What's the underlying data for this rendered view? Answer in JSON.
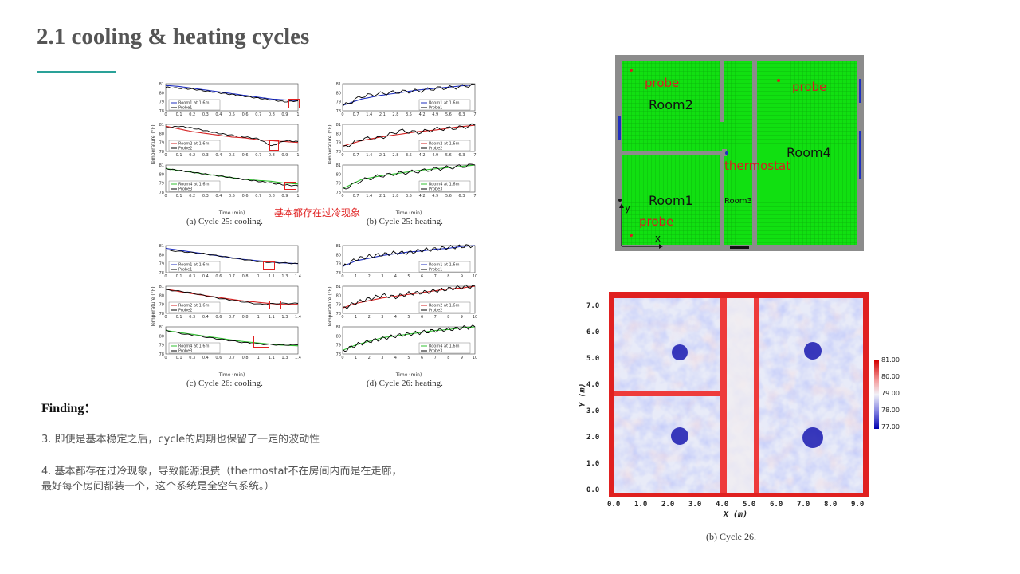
{
  "slide": {
    "title": "2.1 cooling & heating cycles",
    "accent": "#2aa198"
  },
  "charts": {
    "ylabel": "Temperature (°F)",
    "xlabel": "Time (min)",
    "overlay_note": "基本都存在过冷现象",
    "caption_a": "(a) Cycle 25: cooling.",
    "caption_b": "(b) Cycle 25: heating.",
    "caption_c": "(c) Cycle 26: cooling.",
    "caption_d": "(d) Cycle 26: heating."
  },
  "chart_data": [
    {
      "type": "line",
      "title": "",
      "xlabel": "Time (min)",
      "ylabel": "Temperature (°F)",
      "panels": [
        {
          "series": [
            {
              "name": "Room1 at 1.6m",
              "color": "#1f2fbf"
            },
            {
              "name": "Probe1",
              "color": "#000000"
            }
          ],
          "xlim": [
            0,
            1
          ],
          "ylim": [
            78,
            81
          ],
          "x": [
            0,
            0.1,
            0.2,
            0.3,
            0.4,
            0.5,
            0.6,
            0.7,
            0.8,
            0.9,
            1.0
          ],
          "room": [
            80.8,
            80.7,
            80.5,
            80.3,
            80.1,
            79.9,
            79.7,
            79.5,
            79.3,
            79.2,
            79.1
          ],
          "probe": [
            80.6,
            80.5,
            80.4,
            80.2,
            80.0,
            79.8,
            79.6,
            79.4,
            79.2,
            79.0,
            79.1
          ]
        },
        {
          "series": [
            {
              "name": "Room2 at 1.6m",
              "color": "#d42020"
            },
            {
              "name": "Probe2",
              "color": "#000000"
            }
          ],
          "xlim": [
            0,
            1
          ],
          "ylim": [
            78,
            81
          ],
          "x": [
            0,
            0.1,
            0.2,
            0.3,
            0.4,
            0.5,
            0.6,
            0.7,
            0.8,
            0.9,
            1.0
          ],
          "room": [
            80.8,
            80.5,
            80.2,
            80.0,
            79.8,
            79.6,
            79.5,
            79.3,
            79.2,
            79.1,
            79.0
          ],
          "probe": [
            80.6,
            80.8,
            80.6,
            80.3,
            80.0,
            79.8,
            79.6,
            79.4,
            78.6,
            79.2,
            79.1
          ]
        },
        {
          "series": [
            {
              "name": "Room4 at 1.6m",
              "color": "#30c030"
            },
            {
              "name": "Probe3",
              "color": "#000000"
            }
          ],
          "xlim": [
            0,
            1
          ],
          "ylim": [
            78,
            81
          ],
          "x": [
            0,
            0.1,
            0.2,
            0.3,
            0.4,
            0.5,
            0.6,
            0.7,
            0.8,
            0.9,
            1.0
          ],
          "room": [
            80.6,
            80.4,
            80.2,
            80.0,
            79.8,
            79.6,
            79.4,
            79.3,
            79.2,
            79.0,
            78.9
          ],
          "probe": [
            80.6,
            80.4,
            80.2,
            80.0,
            79.8,
            79.6,
            79.4,
            79.2,
            79.0,
            78.8,
            78.7
          ]
        }
      ]
    },
    {
      "type": "line",
      "title": "",
      "xlabel": "Time (min)",
      "ylabel": "Temperature (°F)",
      "panels": [
        {
          "series": [
            {
              "name": "Room1 at 1.6m",
              "color": "#1f2fbf"
            },
            {
              "name": "Probe1",
              "color": "#000000"
            }
          ],
          "xlim": [
            0,
            7
          ],
          "ylim": [
            78,
            81
          ],
          "x": [
            0,
            1,
            2,
            3,
            4,
            5,
            6,
            7
          ],
          "room": [
            78.6,
            79.3,
            79.7,
            80.0,
            80.3,
            80.5,
            80.7,
            80.9
          ],
          "probe": [
            78.5,
            79.6,
            79.9,
            80.1,
            80.2,
            80.5,
            80.6,
            80.9
          ]
        },
        {
          "series": [
            {
              "name": "Room2 at 1.6m",
              "color": "#d42020"
            },
            {
              "name": "Probe2",
              "color": "#000000"
            }
          ],
          "xlim": [
            0,
            7
          ],
          "ylim": [
            78,
            81
          ],
          "x": [
            0,
            1,
            2,
            3,
            4,
            5,
            6,
            7
          ],
          "room": [
            78.6,
            79.2,
            79.6,
            79.9,
            80.2,
            80.4,
            80.7,
            80.9
          ],
          "probe": [
            78.4,
            79.4,
            79.5,
            80.3,
            80.1,
            80.5,
            80.6,
            80.9
          ]
        },
        {
          "series": [
            {
              "name": "Room4 at 1.6m",
              "color": "#30c030"
            },
            {
              "name": "Probe3",
              "color": "#000000"
            }
          ],
          "xlim": [
            0,
            7
          ],
          "ylim": [
            78,
            81
          ],
          "x": [
            0,
            1,
            2,
            3,
            4,
            5,
            6,
            7
          ],
          "room": [
            78.4,
            79.4,
            79.8,
            80.1,
            80.4,
            80.6,
            80.8,
            81.0
          ],
          "probe": [
            78.3,
            79.3,
            79.8,
            80.1,
            80.3,
            80.6,
            80.8,
            81.0
          ]
        }
      ]
    },
    {
      "type": "line",
      "title": "",
      "xlabel": "Time (min)",
      "ylabel": "Temperature (°F)",
      "panels": [
        {
          "series": [
            {
              "name": "Room1 at 1.6m",
              "color": "#1f2fbf"
            },
            {
              "name": "Probe1",
              "color": "#000000"
            }
          ],
          "xlim": [
            0,
            1.4
          ],
          "ylim": [
            78,
            81
          ],
          "x": [
            0,
            0.2,
            0.4,
            0.6,
            0.8,
            1.0,
            1.2,
            1.4
          ],
          "room": [
            80.7,
            80.4,
            80.1,
            79.8,
            79.5,
            79.3,
            79.1,
            79.0
          ],
          "probe": [
            80.5,
            80.3,
            80.1,
            79.8,
            79.5,
            79.2,
            79.1,
            79.0
          ]
        },
        {
          "series": [
            {
              "name": "Room2 at 1.6m",
              "color": "#d42020"
            },
            {
              "name": "Probe2",
              "color": "#000000"
            }
          ],
          "xlim": [
            0,
            1.4
          ],
          "ylim": [
            78,
            81
          ],
          "x": [
            0,
            0.2,
            0.4,
            0.6,
            0.8,
            1.0,
            1.2,
            1.4
          ],
          "room": [
            80.7,
            80.3,
            80.0,
            79.7,
            79.4,
            79.2,
            79.0,
            79.0
          ],
          "probe": [
            80.6,
            80.4,
            80.0,
            79.6,
            79.3,
            79.0,
            79.1,
            79.1
          ]
        },
        {
          "series": [
            {
              "name": "Room4 at 1.6m",
              "color": "#30c030"
            },
            {
              "name": "Probe3",
              "color": "#000000"
            }
          ],
          "xlim": [
            0,
            1.4
          ],
          "ylim": [
            78,
            81
          ],
          "x": [
            0,
            0.2,
            0.4,
            0.6,
            0.8,
            1.0,
            1.2,
            1.4
          ],
          "room": [
            80.6,
            80.3,
            80.0,
            79.7,
            79.4,
            79.2,
            79.0,
            78.9
          ],
          "probe": [
            80.6,
            80.2,
            79.9,
            79.6,
            79.3,
            79.1,
            79.0,
            79.0
          ]
        }
      ]
    },
    {
      "type": "line",
      "title": "",
      "xlabel": "Time (min)",
      "ylabel": "Temperature (°F)",
      "panels": [
        {
          "series": [
            {
              "name": "Room1 at 1.6m",
              "color": "#1f2fbf"
            },
            {
              "name": "Probe1",
              "color": "#000000"
            }
          ],
          "xlim": [
            0,
            10
          ],
          "ylim": [
            78,
            81
          ],
          "x": [
            0,
            1,
            2,
            3,
            4,
            5,
            6,
            7,
            8,
            9,
            10
          ],
          "room": [
            78.7,
            79.3,
            79.6,
            79.9,
            80.1,
            80.3,
            80.4,
            80.6,
            80.7,
            80.9,
            81.0
          ],
          "probe": [
            78.6,
            79.5,
            79.8,
            80.0,
            80.2,
            80.2,
            80.5,
            80.6,
            80.8,
            80.9,
            81.0
          ]
        },
        {
          "series": [
            {
              "name": "Room2 at 1.6m",
              "color": "#d42020"
            },
            {
              "name": "Probe2",
              "color": "#000000"
            }
          ],
          "xlim": [
            0,
            10
          ],
          "ylim": [
            78,
            81
          ],
          "x": [
            0,
            1,
            2,
            3,
            4,
            5,
            6,
            7,
            8,
            9,
            10
          ],
          "room": [
            78.6,
            79.1,
            79.4,
            79.7,
            79.9,
            80.1,
            80.3,
            80.5,
            80.7,
            80.8,
            81.0
          ],
          "probe": [
            78.5,
            79.2,
            79.6,
            80.0,
            79.8,
            80.2,
            80.3,
            80.5,
            80.7,
            80.9,
            81.0
          ]
        },
        {
          "series": [
            {
              "name": "Room4 at 1.6m",
              "color": "#30c030"
            },
            {
              "name": "Probe3",
              "color": "#000000"
            }
          ],
          "xlim": [
            0,
            10
          ],
          "ylim": [
            78,
            81
          ],
          "x": [
            0,
            1,
            2,
            3,
            4,
            5,
            6,
            7,
            8,
            9,
            10
          ],
          "room": [
            78.4,
            79.0,
            79.4,
            79.8,
            80.0,
            80.2,
            80.4,
            80.6,
            80.7,
            80.9,
            81.0
          ],
          "probe": [
            78.3,
            79.0,
            79.4,
            79.7,
            80.0,
            80.2,
            80.4,
            80.6,
            80.7,
            80.9,
            81.0
          ]
        }
      ]
    }
  ],
  "floorplan": {
    "labels": {
      "room1": "Room1",
      "room2": "Room2",
      "room3": "Room3",
      "room4": "Room4",
      "probe": "probe",
      "thermostat": "thermostat",
      "axis_x": "x",
      "axis_y": "y"
    },
    "colors": {
      "floor": "#11e011",
      "wall": "#8c8c8c",
      "probe": "#d42020",
      "thermostat": "#1f2fbf"
    }
  },
  "heatmap": {
    "xlabel": "X (m)",
    "ylabel": "Y (m)",
    "xticks": [
      "0.0",
      "1.0",
      "2.0",
      "3.0",
      "4.0",
      "5.0",
      "6.0",
      "7.0",
      "8.0",
      "9.0"
    ],
    "yticks": [
      "0.0",
      "1.0",
      "2.0",
      "3.0",
      "4.0",
      "5.0",
      "6.0",
      "7.0"
    ],
    "colorbar": [
      "81.00",
      "80.00",
      "79.00",
      "78.00",
      "77.00"
    ],
    "caption": "(b) Cycle 26."
  },
  "findings": {
    "heading": "Finding：",
    "item3": "3.  即使是基本稳定之后，cycle的周期也保留了一定的波动性",
    "item4_line1": "4.  基本都存在过冷现象，导致能源浪费（thermostat不在房间内而是在走廊，",
    "item4_line2": "最好每个房间都装一个，这个系统是全空气系统。）"
  }
}
